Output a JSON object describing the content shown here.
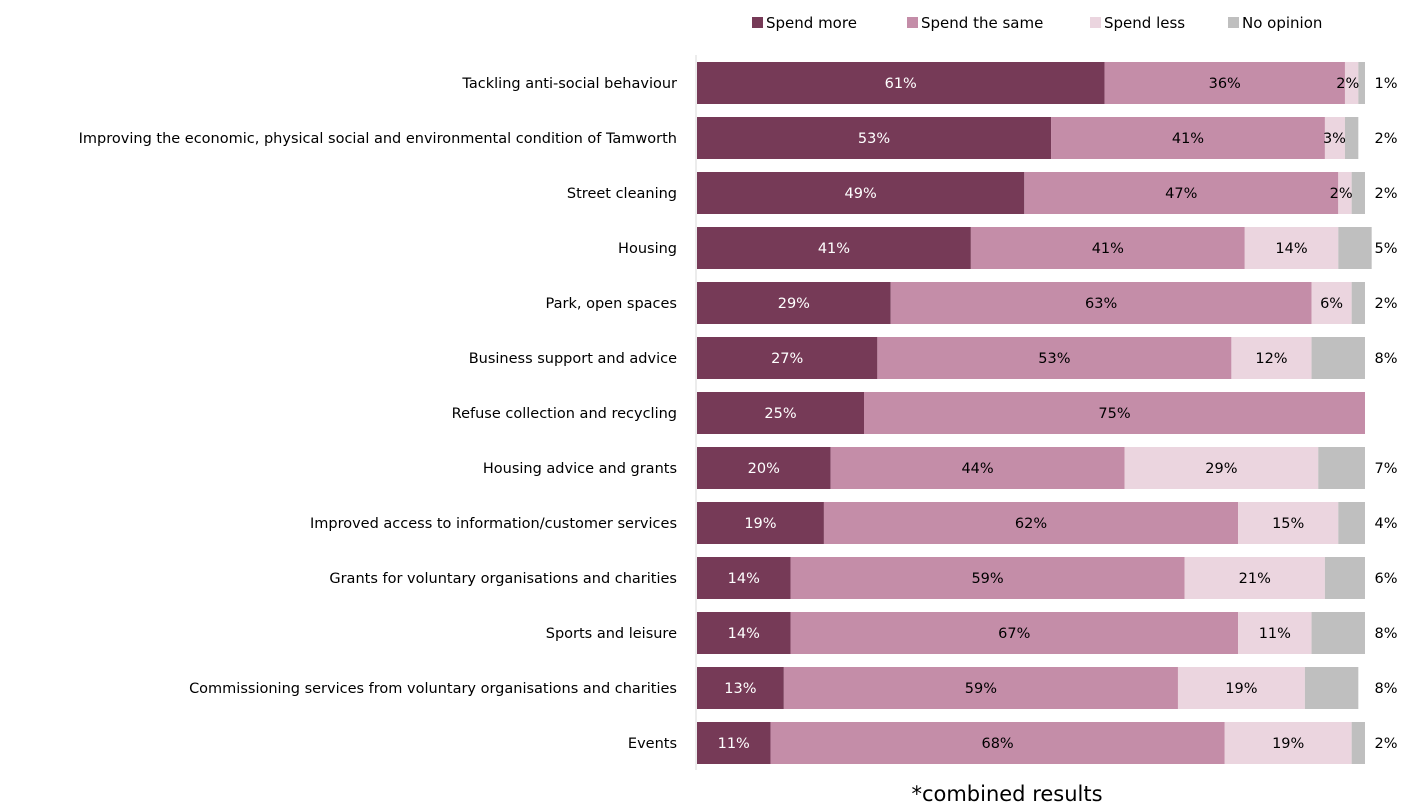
{
  "chart_data": {
    "type": "bar",
    "orientation": "horizontal",
    "stacked": true,
    "categories": [
      "Tackling anti-social behaviour",
      "Improving the economic, physical social and environmental condition of Tamworth",
      "Street cleaning",
      "Housing",
      "Park, open spaces",
      "Business support and advice",
      "Refuse collection and recycling",
      "Housing advice and grants",
      "Improved access to information/customer services",
      "Grants for voluntary organisations and charities",
      "Sports and leisure",
      "Commissioning services from voluntary organisations and charities",
      "Events"
    ],
    "series": [
      {
        "name": "Spend more",
        "color": "#763A57",
        "label_color": "#ffffff",
        "values": [
          61,
          53,
          49,
          41,
          29,
          27,
          25,
          20,
          19,
          14,
          14,
          13,
          11
        ]
      },
      {
        "name": "Spend the same",
        "color": "#C48DA8",
        "label_color": "#000000",
        "values": [
          36,
          41,
          47,
          41,
          63,
          53,
          75,
          44,
          62,
          59,
          67,
          59,
          68
        ]
      },
      {
        "name": "Spend less",
        "color": "#EBD5DF",
        "label_color": "#000000",
        "values": [
          2,
          3,
          2,
          14,
          6,
          12,
          null,
          29,
          15,
          21,
          11,
          19,
          19
        ]
      },
      {
        "name": "No opinion",
        "color": "#BFBFBF",
        "label_color": "#000000",
        "values": [
          1,
          2,
          2,
          5,
          2,
          8,
          null,
          7,
          4,
          6,
          8,
          8,
          2
        ]
      }
    ],
    "value_suffix": "%",
    "xlim": [
      0,
      100
    ],
    "grid": false,
    "legend_position": "top",
    "footnote": "*combined results"
  }
}
